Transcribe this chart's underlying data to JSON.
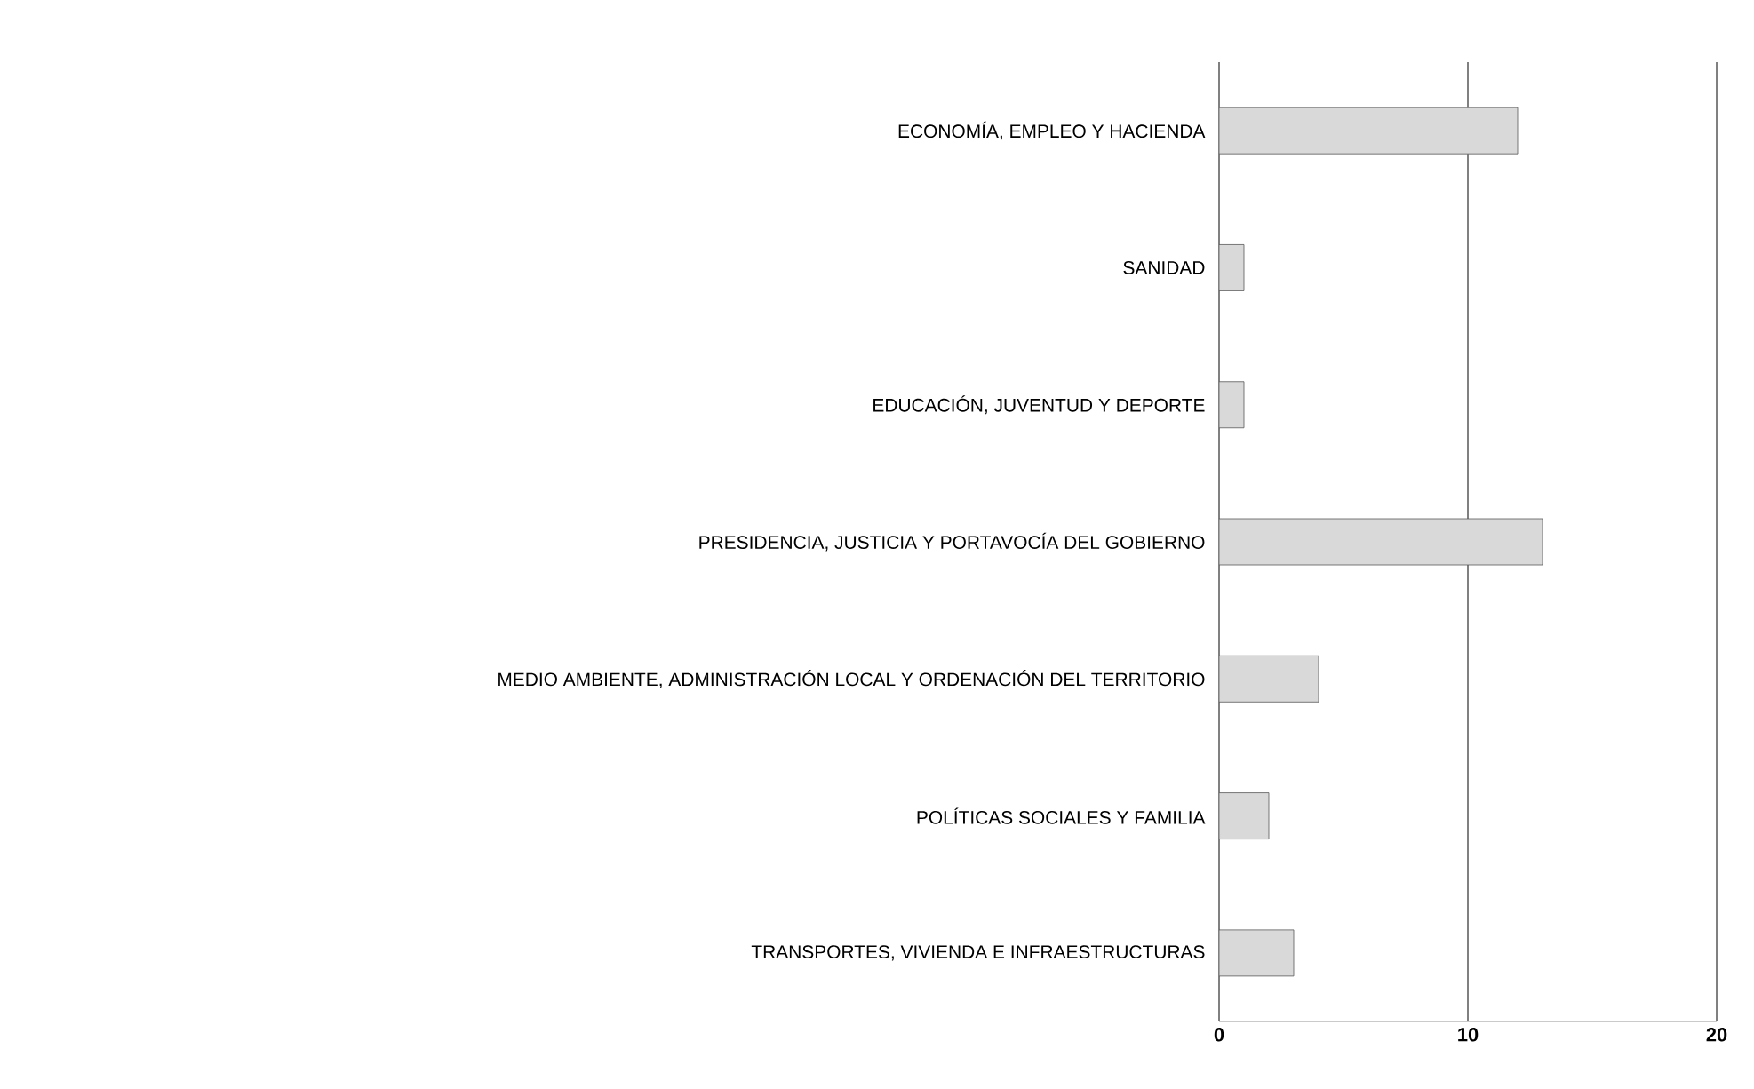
{
  "chart_data": {
    "type": "bar",
    "orientation": "horizontal",
    "categories": [
      "ECONOMÍA, EMPLEO Y HACIENDA",
      "SANIDAD",
      "EDUCACIÓN, JUVENTUD Y DEPORTE",
      "PRESIDENCIA, JUSTICIA Y PORTAVOCÍA DEL GOBIERNO",
      "MEDIO AMBIENTE, ADMINISTRACIÓN LOCAL Y ORDENACIÓN DEL TERRITORIO",
      "POLÍTICAS SOCIALES Y FAMILIA",
      "TRANSPORTES, VIVIENDA E INFRAESTRUCTURAS"
    ],
    "values": [
      12,
      1,
      1,
      13,
      4,
      2,
      3
    ],
    "color": "#d9d9d9",
    "xlim": [
      0,
      20
    ],
    "xticks": [
      0,
      10,
      20
    ],
    "grid": "x"
  }
}
